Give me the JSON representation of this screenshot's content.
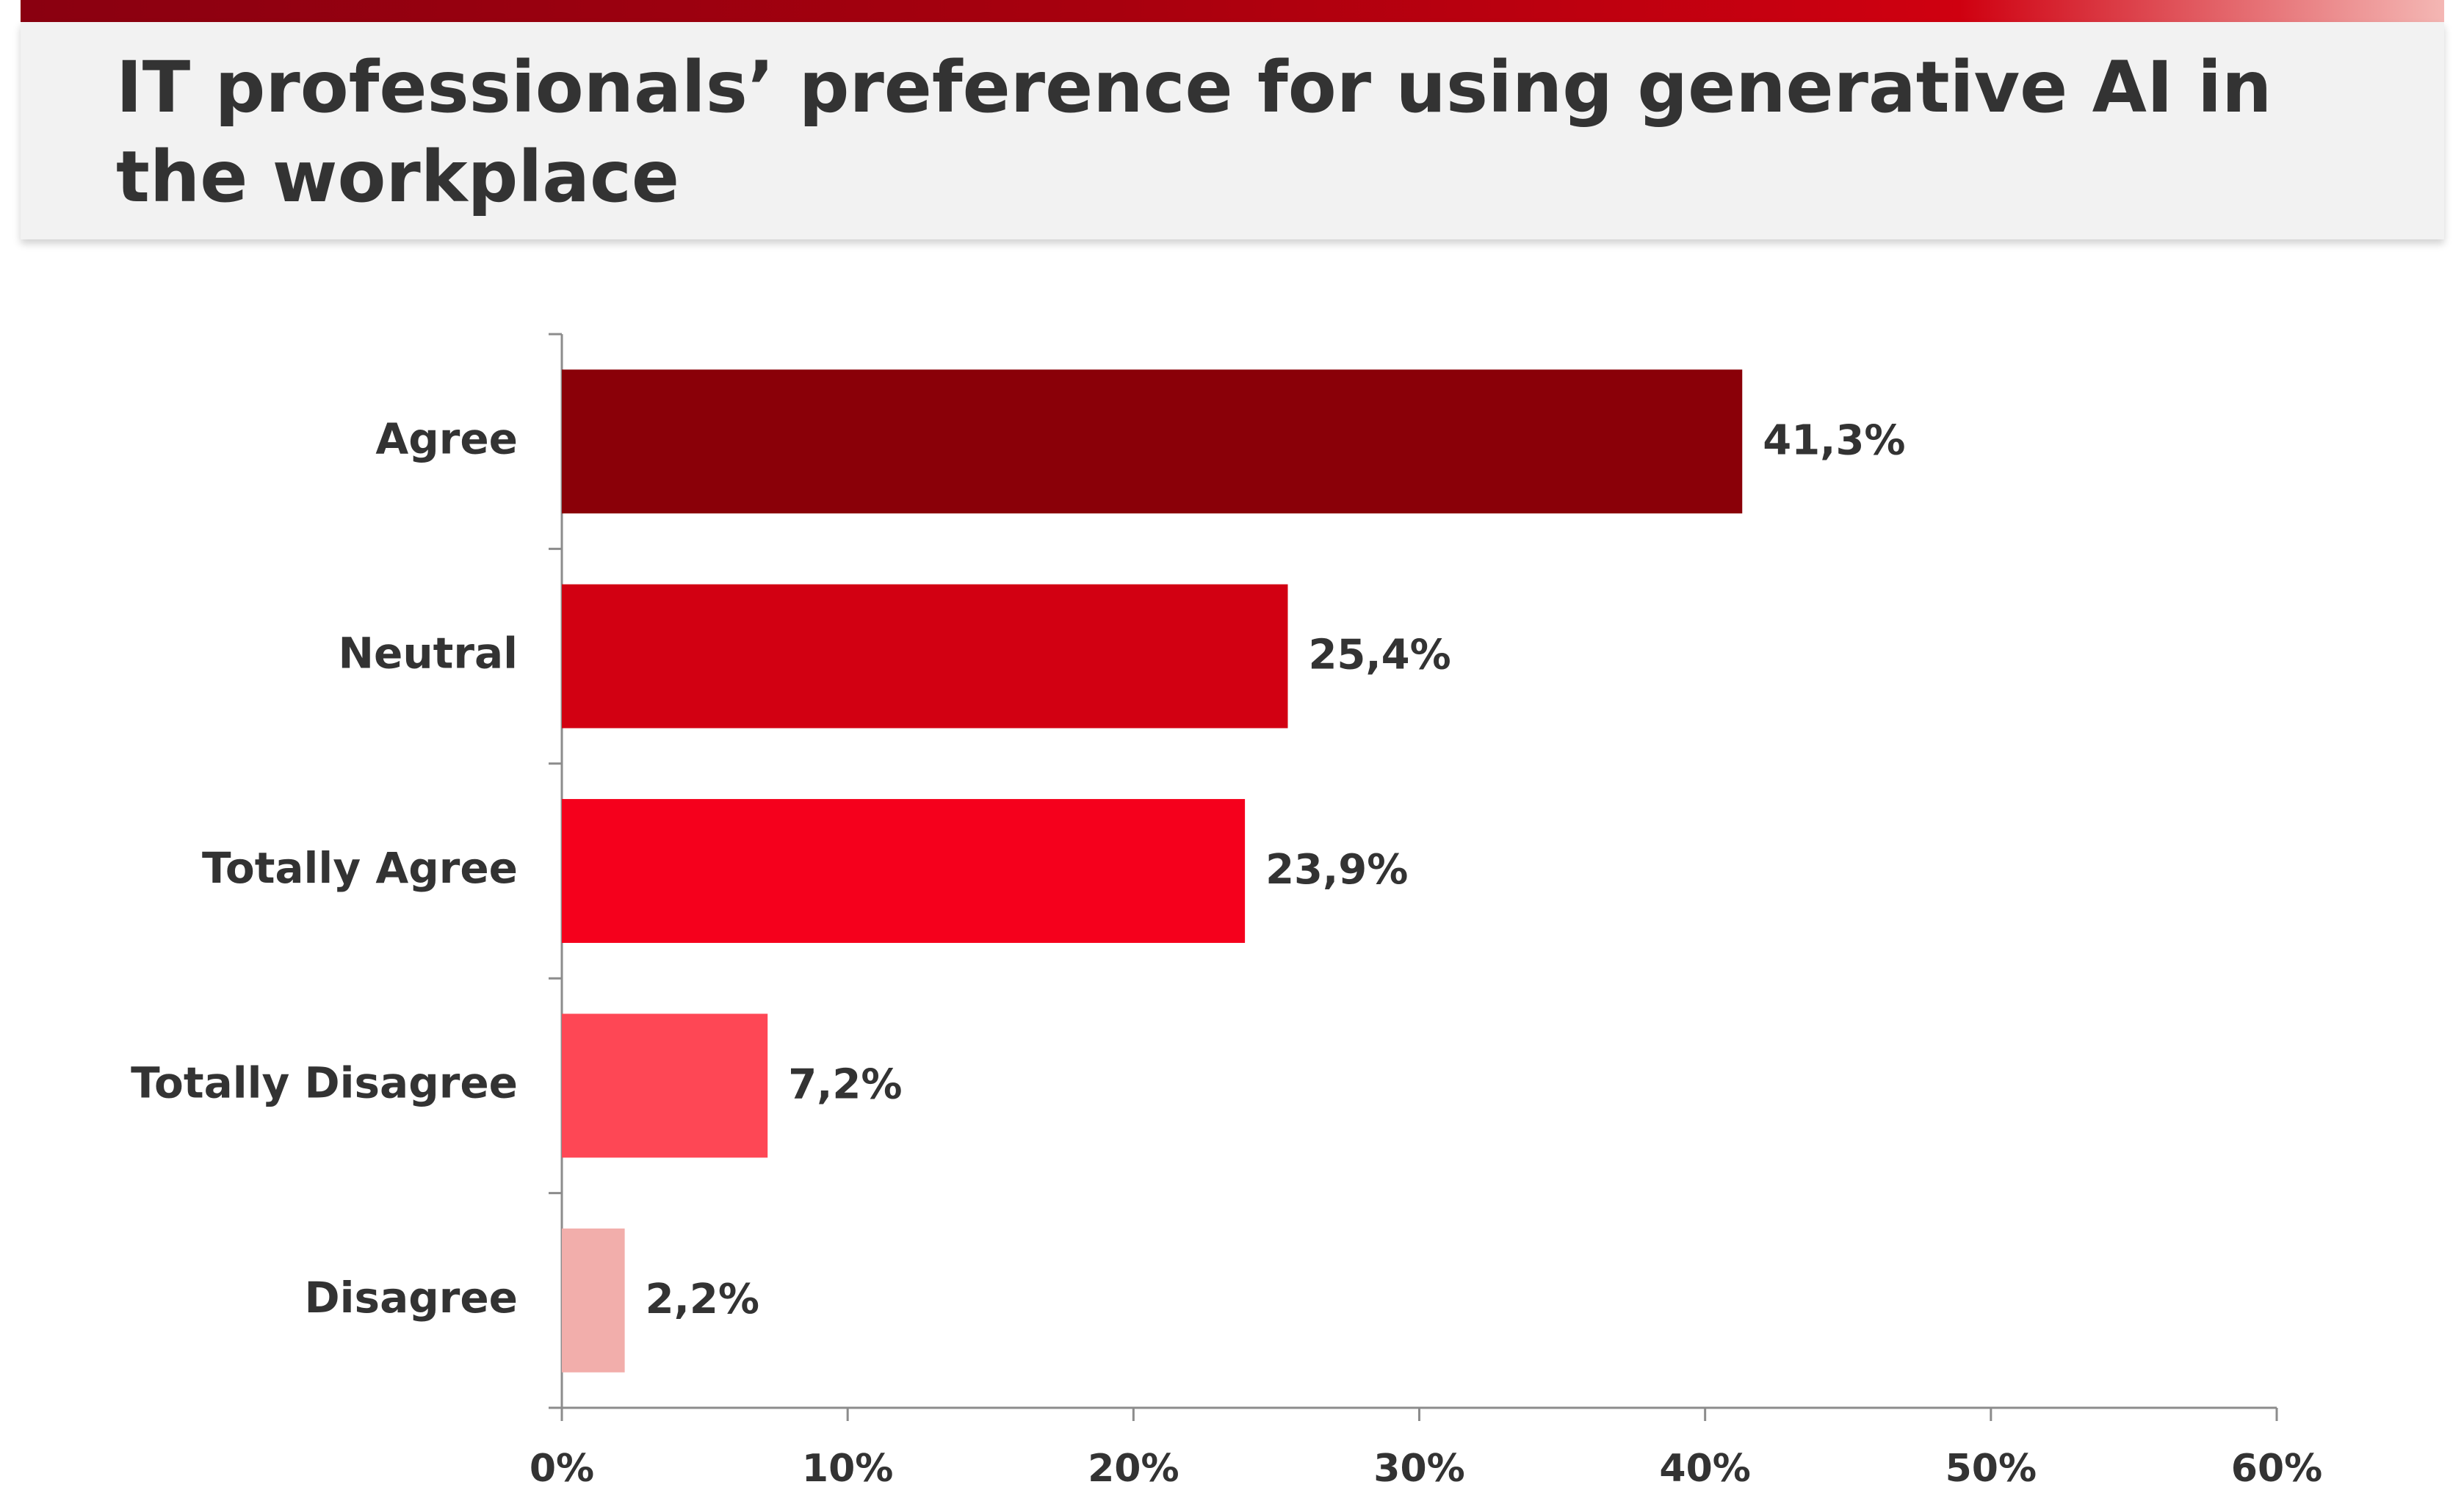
{
  "header": {
    "title": "IT professionals’ preference for using generative AI in the workplace"
  },
  "chart_data": {
    "type": "bar",
    "orientation": "horizontal",
    "title": "IT professionals’ preference for using generative AI in the workplace",
    "categories": [
      "Agree",
      "Neutral",
      "Totally Agree",
      "Totally Disagree",
      "Disagree"
    ],
    "values": [
      41.3,
      25.4,
      23.9,
      7.2,
      2.2
    ],
    "value_labels": [
      "41,3%",
      "25,4%",
      "23,9%",
      "7,2%",
      "2,2%"
    ],
    "bar_colors": [
      "#8a0008",
      "#d20012",
      "#f5001c",
      "#fe4755",
      "#f2aeab"
    ],
    "xlim": [
      0,
      60
    ],
    "x_ticks": [
      0,
      10,
      20,
      30,
      40,
      50,
      60
    ],
    "x_tick_labels": [
      "0%",
      "10%",
      "20%",
      "30%",
      "40%",
      "50%",
      "60%"
    ],
    "xlabel": "",
    "ylabel": "",
    "grid": false,
    "legend": "none"
  }
}
